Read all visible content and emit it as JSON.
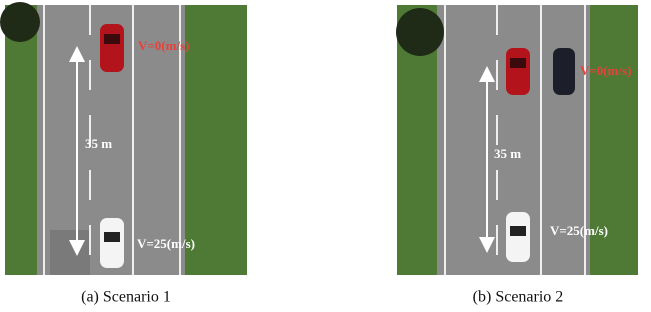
{
  "panels": [
    {
      "stop_label": "V=0(m/s)",
      "distance_label": "35 m",
      "speed_label": "V=25(m/s)",
      "caption": "(a) Scenario 1"
    },
    {
      "stop_label": "V=0(m/s)",
      "distance_label": "35 m",
      "speed_label": "V=25(m/s)",
      "caption": "(b) Scenario 2"
    }
  ]
}
